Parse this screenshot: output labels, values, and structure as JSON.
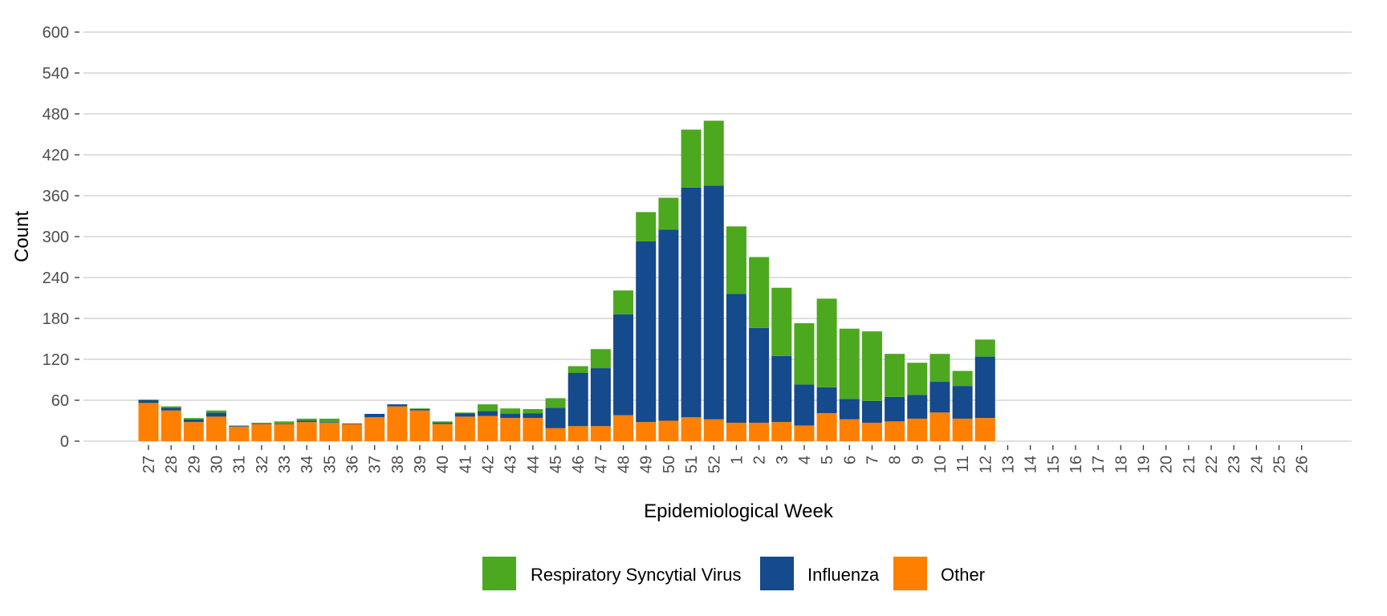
{
  "chart_data": {
    "type": "bar",
    "stacked": true,
    "xlabel": "Epidemiological Week",
    "ylabel": "Count",
    "ylim": [
      0,
      600
    ],
    "yticks": [
      0,
      60,
      120,
      180,
      240,
      300,
      360,
      420,
      480,
      540,
      600
    ],
    "grid": "horizontal",
    "legend_position": "bottom",
    "categories": [
      "27",
      "28",
      "29",
      "30",
      "31",
      "32",
      "33",
      "34",
      "35",
      "36",
      "37",
      "38",
      "39",
      "40",
      "41",
      "42",
      "43",
      "44",
      "45",
      "46",
      "47",
      "48",
      "49",
      "50",
      "51",
      "52",
      "1",
      "2",
      "3",
      "4",
      "5",
      "6",
      "7",
      "8",
      "9",
      "10",
      "11",
      "12",
      "13",
      "14",
      "15",
      "16",
      "17",
      "18",
      "19",
      "20",
      "21",
      "22",
      "23",
      "24",
      "25",
      "26"
    ],
    "series": [
      {
        "name": "Other",
        "color": "#ff7f00",
        "values": [
          56,
          45,
          28,
          36,
          21,
          25,
          25,
          28,
          27,
          25,
          35,
          51,
          45,
          25,
          36,
          37,
          34,
          34,
          19,
          22,
          22,
          38,
          28,
          30,
          35,
          32,
          27,
          27,
          28,
          23,
          41,
          32,
          27,
          29,
          33,
          42,
          33,
          34,
          null,
          null,
          null,
          null,
          null,
          null,
          null,
          null,
          null,
          null,
          null,
          null,
          null,
          null
        ]
      },
      {
        "name": "Influenza",
        "color": "#154a8c",
        "values": [
          4,
          4,
          4,
          6,
          1,
          1,
          1,
          2,
          1,
          1,
          5,
          3,
          2,
          2,
          5,
          7,
          6,
          7,
          30,
          78,
          85,
          148,
          265,
          280,
          337,
          343,
          189,
          139,
          97,
          60,
          38,
          30,
          32,
          36,
          35,
          45,
          48,
          90,
          null,
          null,
          null,
          null,
          null,
          null,
          null,
          null,
          null,
          null,
          null,
          null,
          null,
          null
        ]
      },
      {
        "name": "Respiratory Syncytial Virus",
        "color": "#4ca81e",
        "values": [
          1,
          2,
          2,
          3,
          1,
          1,
          3,
          3,
          5,
          0,
          0,
          0,
          1,
          2,
          1,
          10,
          8,
          6,
          14,
          10,
          28,
          35,
          43,
          47,
          85,
          95,
          99,
          104,
          100,
          90,
          130,
          103,
          102,
          63,
          47,
          41,
          22,
          25,
          null,
          null,
          null,
          null,
          null,
          null,
          null,
          null,
          null,
          null,
          null,
          null,
          null,
          null
        ]
      }
    ],
    "legend_order": [
      "Respiratory Syncytial Virus",
      "Influenza",
      "Other"
    ]
  }
}
